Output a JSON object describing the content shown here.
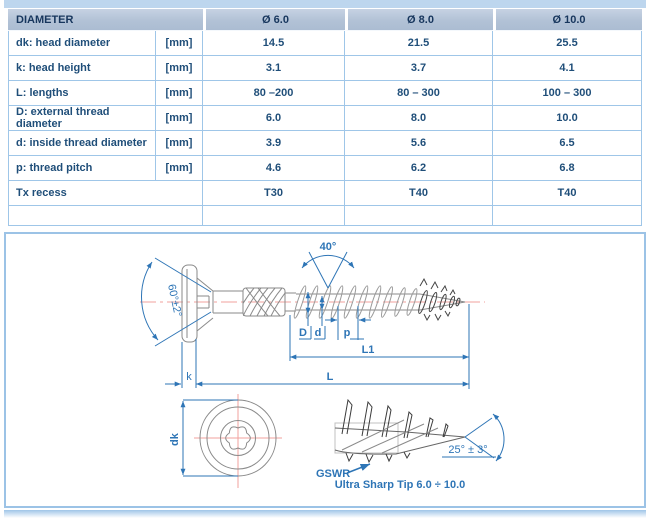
{
  "table": {
    "header": {
      "label": "DIAMETER",
      "columns": [
        "Ø 6.0",
        "Ø 8.0",
        "Ø 10.0"
      ]
    },
    "rows": [
      {
        "label": "dk: head diameter",
        "unit": "[mm]",
        "values": [
          "14.5",
          "21.5",
          "25.5"
        ]
      },
      {
        "label": "k: head height",
        "unit": "[mm]",
        "values": [
          "3.1",
          "3.7",
          "4.1"
        ]
      },
      {
        "label": "L: lengths",
        "unit": "[mm]",
        "values": [
          "80 –200",
          "80 – 300",
          "100 – 300"
        ]
      },
      {
        "label": "D: external thread diameter",
        "unit": "[mm]",
        "values": [
          "6.0",
          "8.0",
          "10.0"
        ]
      },
      {
        "label": "d: inside thread diameter",
        "unit": "[mm]",
        "values": [
          "3.9",
          "5.6",
          "6.5"
        ]
      },
      {
        "label": "p: thread pitch",
        "unit": "[mm]",
        "values": [
          "4.6",
          "6.2",
          "6.8"
        ]
      },
      {
        "label": "Tx recess",
        "unit": "",
        "values": [
          "T30",
          "T40",
          "T40"
        ]
      }
    ]
  },
  "diagram": {
    "angle_top": "40°",
    "angle_head": "60°±2°",
    "dim_D": "D",
    "dim_d": "d",
    "dim_p": "p",
    "dim_L1": "L1",
    "dim_L": "L",
    "dim_k": "k",
    "dim_dk": "dk",
    "angle_tip": "25° ± 3°",
    "gswr_label": "GSWR",
    "tip_caption": "Ultra Sharp Tip 6.0 ÷ 10.0"
  },
  "colors": {
    "accent_blue": "#2e75b6",
    "border_blue": "#9cc3e6",
    "header_bg": "#b2c2d6",
    "navy_text": "#1f4e79",
    "centerline_red": "#f2a19c",
    "top_strip": "#bdd6ee"
  }
}
